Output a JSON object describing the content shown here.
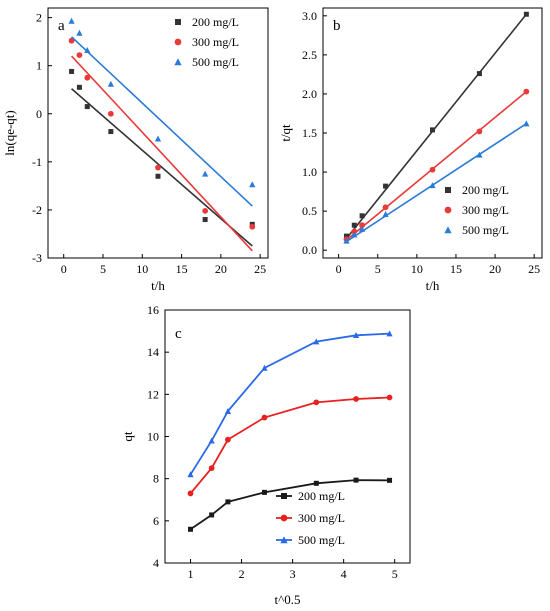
{
  "chart_data": [
    {
      "panel": "a",
      "type": "scatter",
      "xlabel": "t/h",
      "ylabel": "ln(qe-qt)",
      "xlim": [
        -2,
        26
      ],
      "ylim": [
        -3,
        2.2
      ],
      "xticks": [
        0,
        5,
        10,
        15,
        20,
        25
      ],
      "yticks": [
        -3,
        -2,
        -1,
        0,
        1,
        2
      ],
      "legend_position": "top-right",
      "series": [
        {
          "name": "200 mg/L",
          "color": "#333333",
          "marker": "square",
          "x": [
            1,
            2,
            3,
            6,
            12,
            18,
            24
          ],
          "y": [
            0.88,
            0.55,
            0.15,
            -0.37,
            -1.3,
            -2.2,
            -2.3
          ],
          "fit": [
            [
              1,
              0.52
            ],
            [
              24,
              -2.75
            ]
          ]
        },
        {
          "name": "300 mg/L",
          "color": "#e83a3a",
          "marker": "circle",
          "x": [
            1,
            2,
            3,
            6,
            12,
            18,
            24
          ],
          "y": [
            1.52,
            1.22,
            0.75,
            0.0,
            -1.12,
            -2.02,
            -2.35
          ],
          "fit": [
            [
              1,
              1.2
            ],
            [
              24,
              -2.85
            ]
          ]
        },
        {
          "name": "500 mg/L",
          "color": "#2a7ad8",
          "marker": "triangle",
          "x": [
            1,
            2,
            3,
            6,
            12,
            18,
            24
          ],
          "y": [
            1.93,
            1.68,
            1.32,
            0.62,
            -0.52,
            -1.25,
            -1.47
          ],
          "fit": [
            [
              1,
              1.6
            ],
            [
              24,
              -1.92
            ]
          ]
        }
      ]
    },
    {
      "panel": "b",
      "type": "scatter",
      "xlabel": "t/h",
      "ylabel": "t/qt",
      "xlim": [
        -2,
        26
      ],
      "ylim": [
        -0.1,
        3.1
      ],
      "xticks": [
        0,
        5,
        10,
        15,
        20,
        25
      ],
      "yticks": [
        0.0,
        0.5,
        1.0,
        1.5,
        2.0,
        2.5,
        3.0
      ],
      "ytick_labels": [
        "0.0",
        "0.5",
        "1.0",
        "1.5",
        "2.0",
        "2.5",
        "3.0"
      ],
      "legend_position": "bottom-right",
      "series": [
        {
          "name": "200 mg/L",
          "color": "#333333",
          "marker": "square",
          "x": [
            1,
            2,
            3,
            6,
            12,
            18,
            24
          ],
          "y": [
            0.18,
            0.32,
            0.44,
            0.82,
            1.54,
            2.26,
            3.02
          ],
          "fit": [
            [
              1,
              0.15
            ],
            [
              24,
              3.02
            ]
          ]
        },
        {
          "name": "300 mg/L",
          "color": "#e83a3a",
          "marker": "circle",
          "x": [
            1,
            2,
            3,
            6,
            12,
            18,
            24
          ],
          "y": [
            0.14,
            0.24,
            0.32,
            0.55,
            1.03,
            1.52,
            2.03
          ],
          "fit": [
            [
              1,
              0.13
            ],
            [
              24,
              2.03
            ]
          ]
        },
        {
          "name": "500 mg/L",
          "color": "#2a7ad8",
          "marker": "triangle",
          "x": [
            1,
            2,
            3,
            6,
            12,
            18,
            24
          ],
          "y": [
            0.12,
            0.2,
            0.27,
            0.46,
            0.83,
            1.22,
            1.62
          ],
          "fit": [
            [
              1,
              0.11
            ],
            [
              24,
              1.62
            ]
          ]
        }
      ]
    },
    {
      "panel": "c",
      "type": "line",
      "xlabel": "t^0.5",
      "ylabel": "qt",
      "xlim": [
        0.5,
        5.3
      ],
      "ylim": [
        4,
        16
      ],
      "xticks": [
        1,
        2,
        3,
        4,
        5
      ],
      "yticks": [
        4,
        6,
        8,
        10,
        12,
        14,
        16
      ],
      "legend_position": "bottom-right",
      "series": [
        {
          "name": "200 mg/L",
          "color": "#1a1a1a",
          "marker": "square",
          "x": [
            1,
            1.414,
            1.732,
            2.449,
            3.464,
            4.243,
            4.899
          ],
          "y": [
            5.6,
            6.28,
            6.9,
            7.35,
            7.78,
            7.93,
            7.92
          ]
        },
        {
          "name": "300 mg/L",
          "color": "#e82020",
          "marker": "circle",
          "x": [
            1,
            1.414,
            1.732,
            2.449,
            3.464,
            4.243,
            4.899
          ],
          "y": [
            7.3,
            8.5,
            9.85,
            10.9,
            11.62,
            11.78,
            11.85
          ]
        },
        {
          "name": "500 mg/L",
          "color": "#2a6ae8",
          "marker": "triangle",
          "x": [
            1,
            1.414,
            1.732,
            2.449,
            3.464,
            4.243,
            4.899
          ],
          "y": [
            8.2,
            9.8,
            11.2,
            13.25,
            14.5,
            14.8,
            14.88
          ]
        }
      ]
    }
  ]
}
